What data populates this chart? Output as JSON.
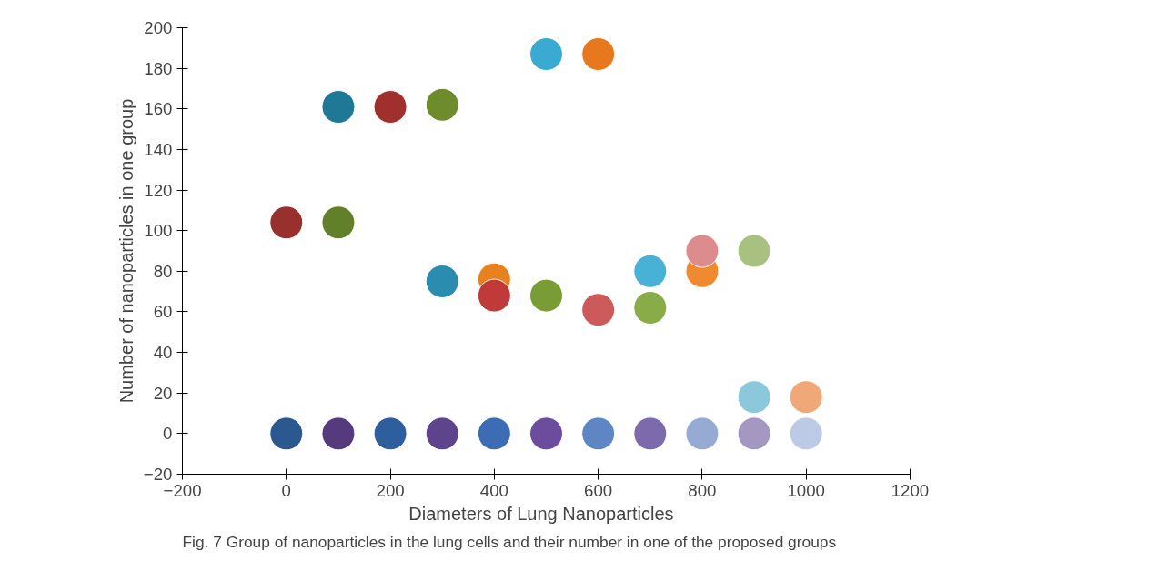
{
  "chart_data": {
    "type": "scatter",
    "xlabel": "Diameters of  Lung  Nanoparticles",
    "ylabel": "Number of nanoparticles in one group",
    "annotations": [
      "Fig. 7 Group of nanoparticles in the lung cells and their number in one of the proposed groups"
    ],
    "xlim": [
      -200,
      1200
    ],
    "ylim": [
      -20,
      200
    ],
    "xticks": [
      -200,
      0,
      200,
      400,
      600,
      800,
      1000,
      1200
    ],
    "yticks": [
      -20,
      0,
      20,
      40,
      60,
      80,
      100,
      120,
      140,
      160,
      180,
      200
    ],
    "grid": false,
    "marker": "circle",
    "series": [
      {
        "x": [
          0,
          100,
          200,
          300,
          400,
          500,
          600,
          700,
          800,
          900,
          1000,
          900,
          1000,
          0,
          100,
          100,
          200,
          300,
          500,
          600,
          300,
          400,
          400,
          500,
          600,
          700,
          700,
          800,
          800,
          900
        ],
        "values": [
          0,
          0,
          0,
          0,
          0,
          0,
          0,
          0,
          0,
          0,
          0,
          18,
          18,
          104,
          104,
          161,
          161,
          162,
          187,
          187,
          75,
          76,
          68,
          68,
          61,
          62,
          80,
          80,
          90,
          90
        ],
        "colors": [
          "#2c5890",
          "#553a7e",
          "#2f5e9e",
          "#5e448c",
          "#3b6cb4",
          "#6c4c9c",
          "#5f86c4",
          "#7d6aac",
          "#96aad4",
          "#a498c2",
          "#bccae6",
          "#8cc8dc",
          "#f0a878",
          "#98302e",
          "#62802a",
          "#1f7896",
          "#a0302e",
          "#6e8c2c",
          "#3aaad2",
          "#e8781e",
          "#2a8cae",
          "#e8821e",
          "#c03a3a",
          "#7a9c34",
          "#cc5a5a",
          "#8aac48",
          "#48b2d6",
          "#f08a30",
          "#dc8c8c",
          "#a8c080"
        ]
      }
    ]
  }
}
